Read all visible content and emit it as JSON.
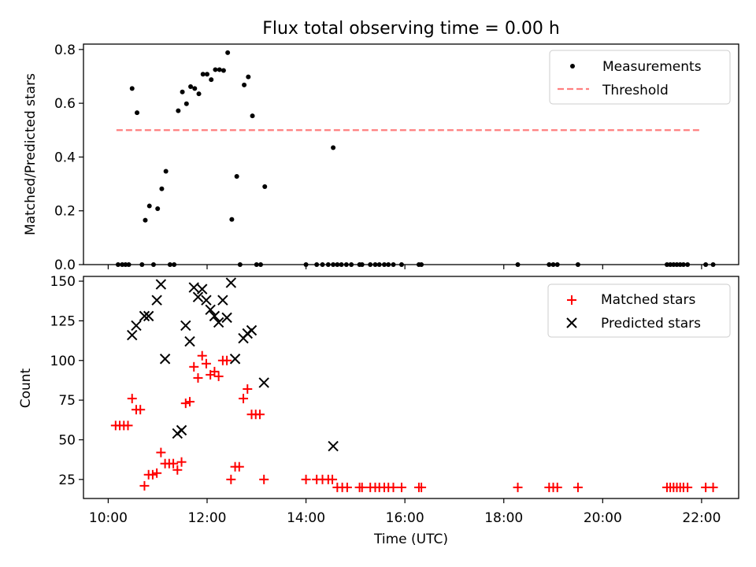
{
  "title": "Flux total observing time = 0.00 h",
  "colors": {
    "measurement": "#000000",
    "threshold": "#ff7f7f",
    "matched": "#ff0000",
    "predicted": "#000000"
  },
  "chart_data": [
    {
      "type": "scatter",
      "ylabel": "Matched/Predicted stars",
      "ylim": [
        0,
        0.82
      ],
      "xlim": [
        "09:30",
        "22:45"
      ],
      "yticks": [
        0.0,
        0.2,
        0.4,
        0.6,
        0.8
      ],
      "ytick_labels": [
        "0.0",
        "0.2",
        "0.4",
        "0.6",
        "0.8"
      ],
      "legend": {
        "position": "top-right",
        "entries": [
          "Measurements",
          "Threshold"
        ]
      },
      "threshold": {
        "name": "Threshold",
        "y": 0.5,
        "x_range": [
          "10:10",
          "22:00"
        ]
      },
      "series": [
        {
          "name": "Measurements",
          "points": [
            [
              "10:12",
              0
            ],
            [
              "10:17",
              0
            ],
            [
              "10:21",
              0
            ],
            [
              "10:25",
              0
            ],
            [
              "10:29",
              0.655
            ],
            [
              "10:35",
              0.565
            ],
            [
              "10:41",
              0
            ],
            [
              "10:45",
              0.165
            ],
            [
              "10:50",
              0.218
            ],
            [
              "10:55",
              0
            ],
            [
              "11:00",
              0.208
            ],
            [
              "11:05",
              0.282
            ],
            [
              "11:10",
              0.347
            ],
            [
              "11:15",
              0
            ],
            [
              "11:20",
              0
            ],
            [
              "11:25",
              0.572
            ],
            [
              "11:30",
              0.642
            ],
            [
              "11:35",
              0.598
            ],
            [
              "11:40",
              0.662
            ],
            [
              "11:45",
              0.655
            ],
            [
              "11:50",
              0.635
            ],
            [
              "11:55",
              0.708
            ],
            [
              "12:00",
              0.708
            ],
            [
              "12:05",
              0.688
            ],
            [
              "12:10",
              0.725
            ],
            [
              "12:15",
              0.725
            ],
            [
              "12:20",
              0.722
            ],
            [
              "12:25",
              0.788
            ],
            [
              "12:30",
              0.168
            ],
            [
              "12:36",
              0.328
            ],
            [
              "12:40",
              0
            ],
            [
              "12:45",
              0.668
            ],
            [
              "12:50",
              0.698
            ],
            [
              "12:55",
              0.553
            ],
            [
              "13:00",
              0
            ],
            [
              "13:05",
              0
            ],
            [
              "13:10",
              0.29
            ],
            [
              "14:00",
              0
            ],
            [
              "14:13",
              0
            ],
            [
              "14:20",
              0
            ],
            [
              "14:27",
              0
            ],
            [
              "14:33",
              0
            ],
            [
              "14:38",
              0
            ],
            [
              "14:43",
              0
            ],
            [
              "14:49",
              0
            ],
            [
              "14:55",
              0
            ],
            [
              "14:33",
              0.435
            ],
            [
              "15:05",
              0
            ],
            [
              "15:08",
              0
            ],
            [
              "15:18",
              0
            ],
            [
              "15:24",
              0
            ],
            [
              "15:29",
              0
            ],
            [
              "15:35",
              0
            ],
            [
              "15:40",
              0
            ],
            [
              "15:46",
              0
            ],
            [
              "15:56",
              0
            ],
            [
              "16:17",
              0
            ],
            [
              "16:20",
              0
            ],
            [
              "18:17",
              0
            ],
            [
              "18:55",
              0
            ],
            [
              "19:00",
              0
            ],
            [
              "19:05",
              0
            ],
            [
              "19:30",
              0
            ],
            [
              "21:18",
              0
            ],
            [
              "21:22",
              0
            ],
            [
              "21:26",
              0
            ],
            [
              "21:30",
              0
            ],
            [
              "21:34",
              0
            ],
            [
              "21:38",
              0
            ],
            [
              "21:43",
              0
            ],
            [
              "22:05",
              0
            ],
            [
              "22:14",
              0
            ]
          ]
        }
      ]
    },
    {
      "type": "scatter",
      "ylabel": "Count",
      "xlabel": "Time (UTC)",
      "ylim": [
        13,
        153
      ],
      "xlim": [
        "09:30",
        "22:45"
      ],
      "yticks": [
        25,
        50,
        75,
        100,
        125,
        150
      ],
      "ytick_labels": [
        "25",
        "50",
        "75",
        "100",
        "125",
        "150"
      ],
      "xticks": [
        "10:00",
        "12:00",
        "14:00",
        "16:00",
        "18:00",
        "20:00",
        "22:00"
      ],
      "xtick_labels": [
        "10:00",
        "12:00",
        "14:00",
        "16:00",
        "18:00",
        "20:00",
        "22:00"
      ],
      "legend": {
        "position": "top-right",
        "entries": [
          "Matched stars",
          "Predicted stars"
        ]
      },
      "series": [
        {
          "name": "Matched stars",
          "marker": "plus",
          "points": [
            [
              "10:09",
              59
            ],
            [
              "10:14",
              59
            ],
            [
              "10:19",
              59
            ],
            [
              "10:24",
              59
            ],
            [
              "10:29",
              76
            ],
            [
              "10:34",
              69
            ],
            [
              "10:39",
              69
            ],
            [
              "10:44",
              21
            ],
            [
              "10:49",
              28
            ],
            [
              "10:54",
              28
            ],
            [
              "10:59",
              29
            ],
            [
              "11:04",
              42
            ],
            [
              "11:09",
              35
            ],
            [
              "11:14",
              35
            ],
            [
              "11:19",
              35
            ],
            [
              "11:24",
              31
            ],
            [
              "11:29",
              36
            ],
            [
              "11:34",
              73
            ],
            [
              "11:39",
              74
            ],
            [
              "11:44",
              96
            ],
            [
              "11:49",
              89
            ],
            [
              "11:54",
              103
            ],
            [
              "11:59",
              98
            ],
            [
              "12:04",
              91
            ],
            [
              "12:09",
              93
            ],
            [
              "12:14",
              90
            ],
            [
              "12:19",
              100
            ],
            [
              "12:24",
              100
            ],
            [
              "12:29",
              25
            ],
            [
              "12:34",
              33
            ],
            [
              "12:39",
              33
            ],
            [
              "12:44",
              76
            ],
            [
              "12:49",
              82
            ],
            [
              "12:54",
              66
            ],
            [
              "12:59",
              66
            ],
            [
              "13:04",
              66
            ],
            [
              "13:09",
              25
            ],
            [
              "14:00",
              25
            ],
            [
              "14:13",
              25
            ],
            [
              "14:20",
              25
            ],
            [
              "14:27",
              25
            ],
            [
              "14:32",
              25
            ],
            [
              "14:38",
              20
            ],
            [
              "14:44",
              20
            ],
            [
              "14:50",
              20
            ],
            [
              "15:05",
              20
            ],
            [
              "15:08",
              20
            ],
            [
              "15:18",
              20
            ],
            [
              "15:24",
              20
            ],
            [
              "15:29",
              20
            ],
            [
              "15:35",
              20
            ],
            [
              "15:40",
              20
            ],
            [
              "15:46",
              20
            ],
            [
              "15:56",
              20
            ],
            [
              "16:17",
              20
            ],
            [
              "16:20",
              20
            ],
            [
              "18:17",
              20
            ],
            [
              "18:55",
              20
            ],
            [
              "19:00",
              20
            ],
            [
              "19:05",
              20
            ],
            [
              "19:30",
              20
            ],
            [
              "21:18",
              20
            ],
            [
              "21:22",
              20
            ],
            [
              "21:26",
              20
            ],
            [
              "21:30",
              20
            ],
            [
              "21:34",
              20
            ],
            [
              "21:38",
              20
            ],
            [
              "21:43",
              20
            ],
            [
              "22:05",
              20
            ],
            [
              "22:14",
              20
            ]
          ]
        },
        {
          "name": "Predicted stars",
          "marker": "x",
          "points": [
            [
              "10:29",
              116
            ],
            [
              "10:34",
              122
            ],
            [
              "10:44",
              128
            ],
            [
              "10:49",
              128
            ],
            [
              "10:59",
              138
            ],
            [
              "11:04",
              148
            ],
            [
              "11:09",
              101
            ],
            [
              "11:24",
              54
            ],
            [
              "11:29",
              56
            ],
            [
              "11:34",
              122
            ],
            [
              "11:39",
              112
            ],
            [
              "11:44",
              146
            ],
            [
              "11:49",
              140
            ],
            [
              "11:54",
              145
            ],
            [
              "11:59",
              138
            ],
            [
              "12:04",
              132
            ],
            [
              "12:09",
              128
            ],
            [
              "12:14",
              124
            ],
            [
              "12:19",
              138
            ],
            [
              "12:24",
              127
            ],
            [
              "12:29",
              149
            ],
            [
              "12:34",
              101
            ],
            [
              "12:44",
              114
            ],
            [
              "12:49",
              117
            ],
            [
              "12:54",
              119
            ],
            [
              "13:09",
              86
            ],
            [
              "14:33",
              46
            ]
          ]
        }
      ]
    }
  ]
}
